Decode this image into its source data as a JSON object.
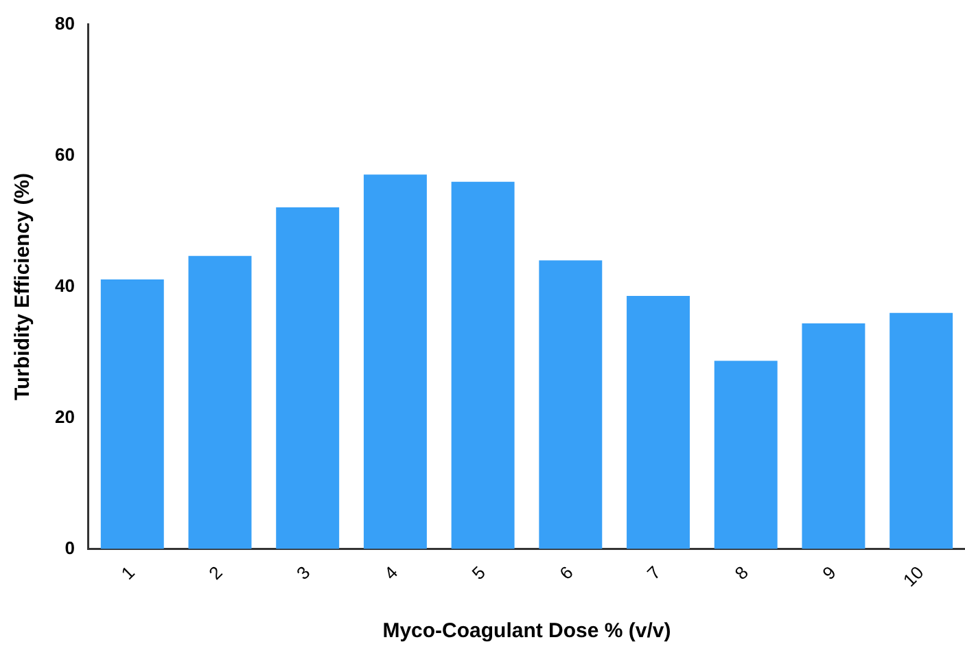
{
  "chart_data": {
    "type": "bar",
    "xlabel": "Myco-Coagulant Dose % (v/v)",
    "ylabel": "Turbidity Efficiency (%)",
    "categories": [
      "1",
      "2",
      "3",
      "4",
      "5",
      "6",
      "7",
      "8",
      "9",
      "10"
    ],
    "values": [
      41.1,
      44.7,
      52.1,
      57.1,
      56.0,
      44.0,
      38.6,
      28.7,
      34.4,
      36.0
    ],
    "color": "#38a0f7",
    "ylim": [
      0,
      80
    ],
    "yticks": [
      0,
      20,
      40,
      60,
      80
    ],
    "grid": false,
    "legend": false
  }
}
